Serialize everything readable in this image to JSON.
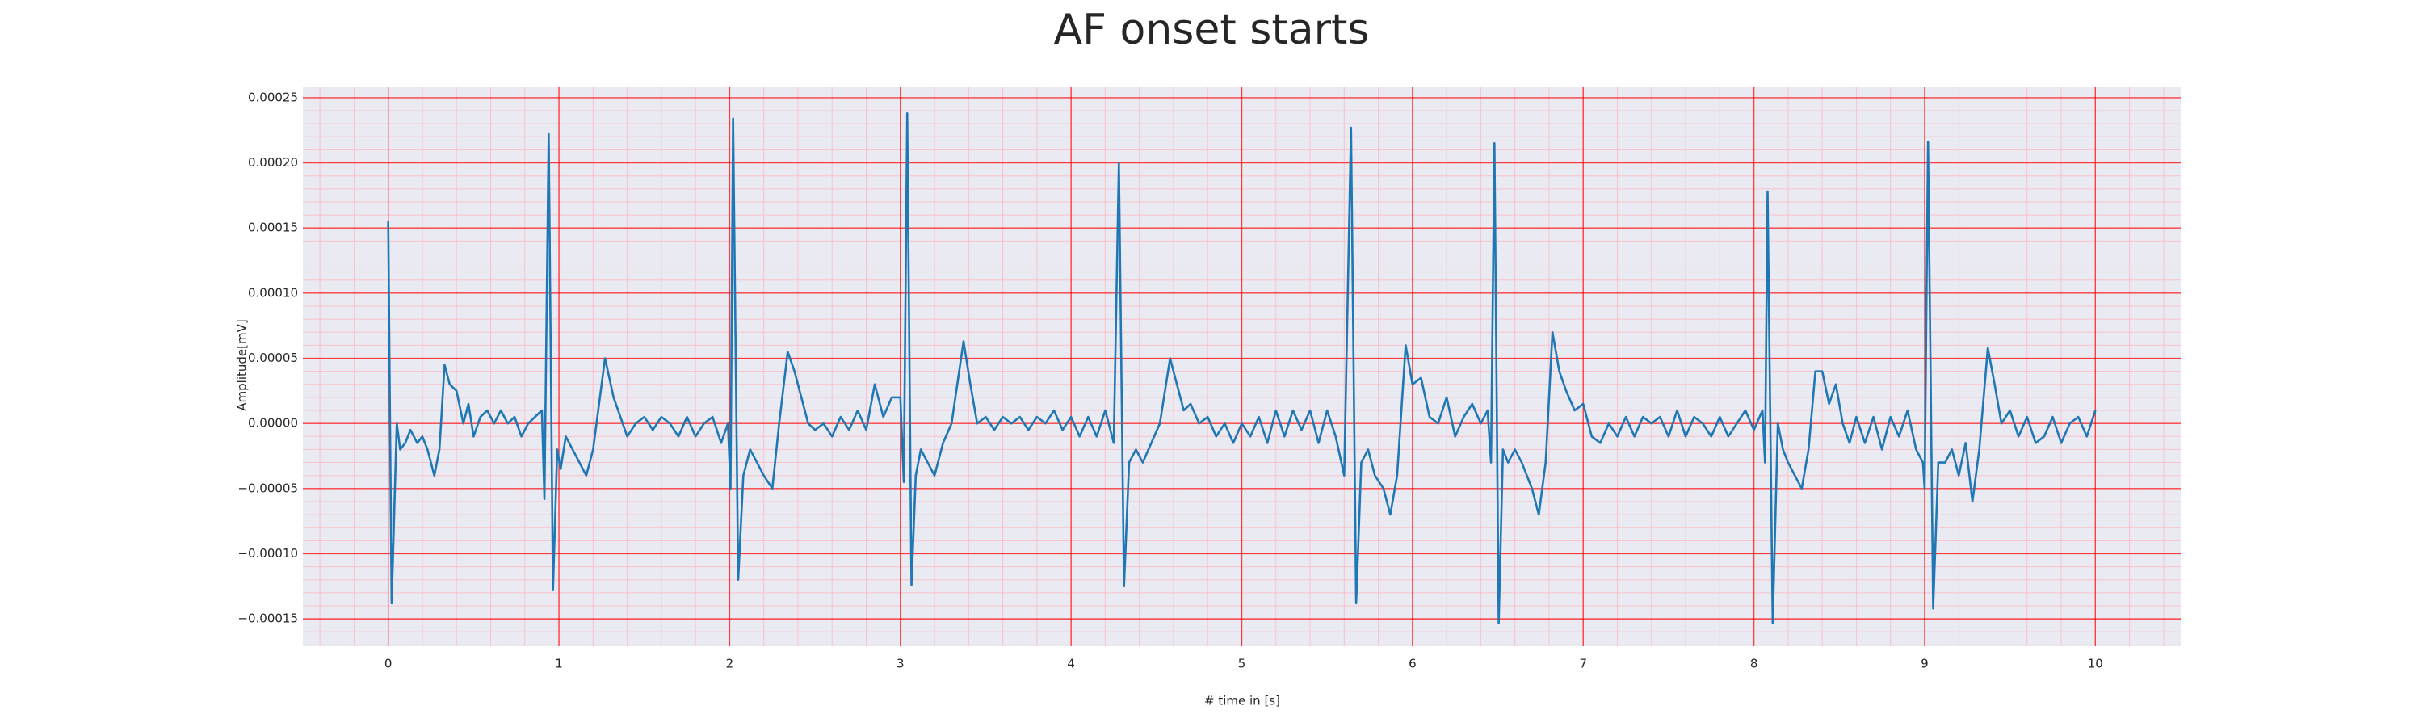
{
  "chart_data": {
    "type": "line",
    "title": "AF onset starts",
    "xlabel": "# time in [s]",
    "ylabel": "Amplitude[mV]",
    "xlim": [
      -0.5,
      10.5
    ],
    "ylim": [
      -0.000171,
      0.000258
    ],
    "xticks": [
      0,
      1,
      2,
      3,
      4,
      5,
      6,
      7,
      8,
      9,
      10
    ],
    "yticks": [
      {
        "value": -0.00015,
        "label": "−0.00015"
      },
      {
        "value": -0.0001,
        "label": "−0.00010"
      },
      {
        "value": -5e-05,
        "label": "−0.00005"
      },
      {
        "value": 0,
        "label": "0.00000"
      },
      {
        "value": 5e-05,
        "label": "0.00005"
      },
      {
        "value": 0.0001,
        "label": "0.00010"
      },
      {
        "value": 0.00015,
        "label": "0.00015"
      },
      {
        "value": 0.0002,
        "label": "0.00020"
      },
      {
        "value": 0.00025,
        "label": "0.00025"
      }
    ],
    "grid": true,
    "minor_grid": true,
    "x": [
      0,
      0.02,
      0.05,
      0.07,
      0.1,
      0.13,
      0.17,
      0.2,
      0.23,
      0.27,
      0.3,
      0.33,
      0.36,
      0.4,
      0.44,
      0.47,
      0.5,
      0.54,
      0.58,
      0.62,
      0.66,
      0.7,
      0.74,
      0.78,
      0.82,
      0.86,
      0.9,
      0.915,
      0.94,
      0.965,
      0.99,
      1.01,
      1.04,
      1.08,
      1.12,
      1.16,
      1.2,
      1.27,
      1.32,
      1.36,
      1.4,
      1.45,
      1.5,
      1.55,
      1.6,
      1.65,
      1.7,
      1.75,
      1.8,
      1.85,
      1.9,
      1.95,
      1.99,
      2.005,
      2.02,
      2.05,
      2.08,
      2.12,
      2.16,
      2.2,
      2.25,
      2.29,
      2.34,
      2.38,
      2.42,
      2.46,
      2.5,
      2.55,
      2.6,
      2.65,
      2.7,
      2.75,
      2.8,
      2.85,
      2.9,
      2.95,
      3.0,
      3.02,
      3.04,
      3.065,
      3.09,
      3.12,
      3.16,
      3.2,
      3.25,
      3.3,
      3.37,
      3.41,
      3.45,
      3.5,
      3.55,
      3.6,
      3.65,
      3.7,
      3.75,
      3.8,
      3.85,
      3.9,
      3.95,
      4.0,
      4.05,
      4.1,
      4.15,
      4.2,
      4.25,
      4.28,
      4.31,
      4.34,
      4.38,
      4.42,
      4.47,
      4.52,
      4.58,
      4.62,
      4.66,
      4.7,
      4.75,
      4.8,
      4.85,
      4.9,
      4.95,
      5.0,
      5.05,
      5.1,
      5.15,
      5.2,
      5.25,
      5.3,
      5.35,
      5.4,
      5.45,
      5.5,
      5.55,
      5.6,
      5.64,
      5.67,
      5.7,
      5.74,
      5.78,
      5.83,
      5.87,
      5.91,
      5.96,
      6.0,
      6.05,
      6.1,
      6.15,
      6.2,
      6.25,
      6.3,
      6.35,
      6.4,
      6.44,
      6.46,
      6.48,
      6.505,
      6.53,
      6.56,
      6.6,
      6.64,
      6.7,
      6.74,
      6.78,
      6.82,
      6.86,
      6.9,
      6.95,
      7.0,
      7.05,
      7.1,
      7.15,
      7.2,
      7.25,
      7.3,
      7.35,
      7.4,
      7.45,
      7.5,
      7.55,
      7.6,
      7.65,
      7.7,
      7.75,
      7.8,
      7.85,
      7.9,
      7.95,
      8.0,
      8.05,
      8.065,
      8.08,
      8.11,
      8.14,
      8.17,
      8.2,
      8.24,
      8.28,
      8.32,
      8.36,
      8.4,
      8.44,
      8.48,
      8.52,
      8.56,
      8.6,
      8.65,
      8.7,
      8.75,
      8.8,
      8.85,
      8.9,
      8.95,
      8.99,
      9.0,
      9.02,
      9.05,
      9.08,
      9.12,
      9.16,
      9.2,
      9.24,
      9.28,
      9.32,
      9.37,
      9.41,
      9.45,
      9.5,
      9.55,
      9.6,
      9.65,
      9.7,
      9.75,
      9.8,
      9.85,
      9.9,
      9.95,
      10.0
    ],
    "series": [
      {
        "color": "#1f77b4",
        "values": [
          0.000155,
          -0.000138,
          0,
          -2e-05,
          -1.5e-05,
          -5e-06,
          -1.5e-05,
          -1e-05,
          -2e-05,
          -4e-05,
          -2e-05,
          4.5e-05,
          3e-05,
          2.5e-05,
          0,
          1.5e-05,
          -1e-05,
          5e-06,
          1e-05,
          0,
          1e-05,
          0,
          5e-06,
          -1e-05,
          0,
          5e-06,
          1e-05,
          -5.8e-05,
          0.000222,
          -0.000128,
          -2e-05,
          -3.5e-05,
          -1e-05,
          -2e-05,
          -3e-05,
          -4e-05,
          -2e-05,
          5e-05,
          2e-05,
          5e-06,
          -1e-05,
          0,
          5e-06,
          -5e-06,
          5e-06,
          0,
          -1e-05,
          5e-06,
          -1e-05,
          0,
          5e-06,
          -1.5e-05,
          0,
          -5e-05,
          0.000234,
          -0.00012,
          -4e-05,
          -2e-05,
          -3e-05,
          -4e-05,
          -5e-05,
          0,
          5.5e-05,
          4e-05,
          2e-05,
          0,
          -5e-06,
          0,
          -1e-05,
          5e-06,
          -5e-06,
          1e-05,
          -5e-06,
          3e-05,
          5e-06,
          2e-05,
          2e-05,
          -4.5e-05,
          0.000238,
          -0.000124,
          -4e-05,
          -2e-05,
          -3e-05,
          -4e-05,
          -1.5e-05,
          0,
          6.3e-05,
          3e-05,
          0,
          5e-06,
          -5e-06,
          5e-06,
          0,
          5e-06,
          -5e-06,
          5e-06,
          0,
          1e-05,
          -5e-06,
          5e-06,
          -1e-05,
          5e-06,
          -1e-05,
          1e-05,
          -1.5e-05,
          0.0002,
          -0.000125,
          -3e-05,
          -2e-05,
          -3e-05,
          -1.5e-05,
          0,
          5e-05,
          3e-05,
          1e-05,
          1.5e-05,
          0,
          5e-06,
          -1e-05,
          0,
          -1.5e-05,
          0,
          -1e-05,
          5e-06,
          -1.5e-05,
          1e-05,
          -1e-05,
          1e-05,
          -5e-06,
          1e-05,
          -1.5e-05,
          1e-05,
          -1e-05,
          -4e-05,
          0.000227,
          -0.000138,
          -3e-05,
          -2e-05,
          -4e-05,
          -5e-05,
          -7e-05,
          -4e-05,
          6e-05,
          3e-05,
          3.5e-05,
          5e-06,
          0,
          2e-05,
          -1e-05,
          5e-06,
          1.5e-05,
          0,
          1e-05,
          -3e-05,
          0.000215,
          -0.000153,
          -2e-05,
          -3e-05,
          -2e-05,
          -3e-05,
          -5e-05,
          -7e-05,
          -3e-05,
          7e-05,
          4e-05,
          2.5e-05,
          1e-05,
          1.5e-05,
          -1e-05,
          -1.5e-05,
          0,
          -1e-05,
          5e-06,
          -1e-05,
          5e-06,
          0,
          5e-06,
          -1e-05,
          1e-05,
          -1e-05,
          5e-06,
          0,
          -1e-05,
          5e-06,
          -1e-05,
          0,
          1e-05,
          -5e-06,
          1e-05,
          -3e-05,
          0.000178,
          -0.000153,
          0,
          -2e-05,
          -3e-05,
          -4e-05,
          -5e-05,
          -2e-05,
          4e-05,
          4e-05,
          1.5e-05,
          3e-05,
          0,
          -1.5e-05,
          5e-06,
          -1.5e-05,
          5e-06,
          -2e-05,
          5e-06,
          -1e-05,
          1e-05,
          -2e-05,
          -3e-05,
          -5e-05,
          0.000216,
          -0.000142,
          -3e-05,
          -3e-05,
          -2e-05,
          -4e-05,
          -1.5e-05,
          -6e-05,
          -2e-05,
          5.8e-05,
          3e-05,
          0,
          1e-05,
          -1e-05,
          5e-06,
          -1.5e-05,
          -1e-05,
          5e-06,
          -1.5e-05,
          0,
          5e-06,
          -1e-05,
          1e-05
        ]
      }
    ]
  }
}
